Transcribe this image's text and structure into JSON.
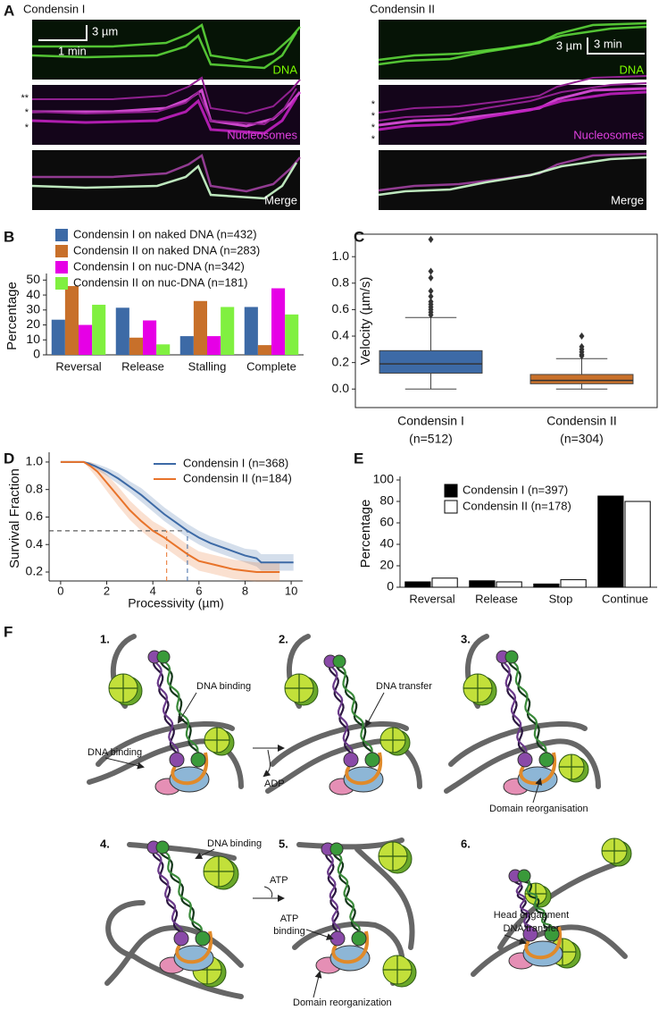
{
  "panel_labels": [
    "A",
    "B",
    "C",
    "D",
    "E",
    "F"
  ],
  "panel_a": {
    "titles": [
      "Condensin I",
      "Condensin II"
    ],
    "channels": [
      "DNA",
      "Nucleosomes",
      "Merge"
    ],
    "scale_bars": [
      {
        "length": "3 µm",
        "time": "1 min"
      },
      {
        "length": "3 µm",
        "time": "3 min"
      }
    ],
    "asterisks": [
      [
        "**",
        "*",
        "*"
      ],
      [
        "*",
        "*",
        "*",
        "*"
      ]
    ]
  },
  "chart_data": [
    {
      "type": "bar",
      "ylabel": "Percentage",
      "categories": [
        "Reversal",
        "Release",
        "Stalling",
        "Complete"
      ],
      "series": [
        {
          "name": "Condensin I on naked DNA (n=432)",
          "color": "#3d6aa6",
          "values": [
            23.5,
            31.5,
            12.5,
            32
          ]
        },
        {
          "name": "Condensin II on naked DNA (n=283)",
          "color": "#c8702a",
          "values": [
            46,
            11.5,
            36,
            6.5
          ]
        },
        {
          "name": "Condensin I on nuc-DNA (n=342)",
          "color": "#e600e6",
          "values": [
            20,
            23,
            12.5,
            44.5
          ]
        },
        {
          "name": "Condensin II on nuc-DNA (n=181)",
          "color": "#80f040",
          "values": [
            33.5,
            7,
            32,
            27
          ]
        }
      ],
      "ylim": [
        0,
        52
      ],
      "yticks": [
        0,
        10,
        20,
        30,
        40,
        50
      ],
      "legend": "upper left"
    },
    {
      "type": "box",
      "ylabel": "Velocity (µm/s)",
      "categories": [
        [
          "Condensin I",
          "(n=512)"
        ],
        [
          "Condensin II",
          "(n=304)"
        ]
      ],
      "boxes": [
        {
          "color": "#3d6aa6",
          "whislo": 0,
          "q1": 0.12,
          "med": 0.19,
          "q3": 0.29,
          "whishi": 0.54,
          "fliers": [
            1.13,
            0.89,
            0.84,
            0.74,
            0.7,
            0.66,
            0.64,
            0.62,
            0.6,
            0.58,
            0.56
          ]
        },
        {
          "color": "#c8702a",
          "whislo": 0,
          "q1": 0.04,
          "med": 0.065,
          "q3": 0.11,
          "whishi": 0.23,
          "fliers": [
            0.4,
            0.32,
            0.3,
            0.28,
            0.26,
            0.25
          ]
        }
      ],
      "ylim": [
        -0.14,
        1.17
      ],
      "yticks": [
        {
          "value": 0,
          "label": "0.0"
        },
        0.2,
        0.4,
        0.6,
        0.8,
        {
          "value": 1,
          "label": "1.0"
        }
      ],
      "frame": true
    },
    {
      "type": "line",
      "xlabel": "Processivity (µm)",
      "ylabel": "Survival Fraction",
      "series": [
        {
          "name": "Condensin I (n=368)",
          "color": "#3d6aa6",
          "x": [
            0,
            1,
            1.2,
            1.5,
            2,
            2.5,
            3,
            3.5,
            4,
            4.5,
            5,
            5.5,
            6,
            6.5,
            7,
            7.5,
            8,
            8.5,
            8.7,
            10.1
          ],
          "values": [
            1,
            1,
            0.99,
            0.97,
            0.93,
            0.88,
            0.82,
            0.76,
            0.69,
            0.62,
            0.56,
            0.5,
            0.45,
            0.41,
            0.38,
            0.35,
            0.32,
            0.3,
            0.27,
            0.27
          ],
          "lower": [
            1,
            1,
            0.98,
            0.95,
            0.9,
            0.84,
            0.78,
            0.71,
            0.64,
            0.57,
            0.51,
            0.45,
            0.4,
            0.36,
            0.33,
            0.3,
            0.27,
            0.24,
            0.21,
            0.21
          ],
          "upper": [
            1,
            1,
            1,
            0.99,
            0.96,
            0.92,
            0.86,
            0.81,
            0.74,
            0.67,
            0.61,
            0.55,
            0.5,
            0.46,
            0.43,
            0.4,
            0.37,
            0.36,
            0.33,
            0.33
          ]
        },
        {
          "name": "Condensin II (n=184)",
          "color": "#e8732a",
          "x": [
            0,
            1,
            1.3,
            1.6,
            2,
            2.5,
            3,
            3.5,
            4,
            4.5,
            5,
            5.5,
            6,
            6.5,
            7,
            7.5,
            8,
            8.5,
            9.5
          ],
          "values": [
            1,
            1,
            0.97,
            0.93,
            0.85,
            0.75,
            0.65,
            0.57,
            0.5,
            0.45,
            0.39,
            0.33,
            0.28,
            0.26,
            0.24,
            0.22,
            0.21,
            0.2,
            0.2
          ],
          "lower": [
            1,
            1,
            0.94,
            0.88,
            0.79,
            0.68,
            0.58,
            0.5,
            0.43,
            0.38,
            0.32,
            0.26,
            0.21,
            0.19,
            0.17,
            0.15,
            0.14,
            0.13,
            0.13
          ],
          "upper": [
            1,
            1,
            1,
            0.97,
            0.91,
            0.82,
            0.72,
            0.64,
            0.57,
            0.52,
            0.46,
            0.4,
            0.35,
            0.33,
            0.31,
            0.29,
            0.28,
            0.27,
            0.27
          ]
        }
      ],
      "reference_lines": [
        {
          "x": 5.5,
          "y": 0.5,
          "color": "#3d6aa6"
        },
        {
          "x": 4.6,
          "y": 0.5,
          "color": "#e8732a"
        }
      ],
      "xlim": [
        -0.5,
        10.5
      ],
      "xticks": [
        0,
        2,
        4,
        6,
        8,
        10
      ],
      "ylim": [
        0.135,
        1.045
      ],
      "yticks": [
        0.2,
        0.4,
        0.6,
        0.8,
        {
          "value": 1,
          "label": "1.0"
        }
      ],
      "legend": "upper right"
    },
    {
      "type": "bar",
      "ylabel": "Percentage",
      "categories": [
        "Reversal",
        "Release",
        "Stop",
        "Continue"
      ],
      "series": [
        {
          "name": "Condensin I (n=397)",
          "color": "#000000",
          "edgecolor": "#000000",
          "values": [
            5,
            6,
            3,
            85
          ]
        },
        {
          "name": "Condensin II (n=178)",
          "color": "#ffffff",
          "edgecolor": "#000000",
          "values": [
            8.5,
            5,
            7,
            80
          ]
        }
      ],
      "ylim": [
        0,
        100
      ],
      "yticks": [
        0,
        20,
        40,
        60,
        80,
        100
      ],
      "legend": "upper left"
    }
  ],
  "panel_f": {
    "steps": [
      "1.",
      "2.",
      "3.",
      "4.",
      "5.",
      "6."
    ],
    "labels": [
      "DNA binding",
      "DNA binding",
      "ADP",
      "DNA transfer",
      "Domain reorganisation",
      "DNA binding",
      "ATP",
      "ATP",
      "binding",
      "Domain reorganization",
      "Head engagment",
      "DNA transfer"
    ]
  }
}
